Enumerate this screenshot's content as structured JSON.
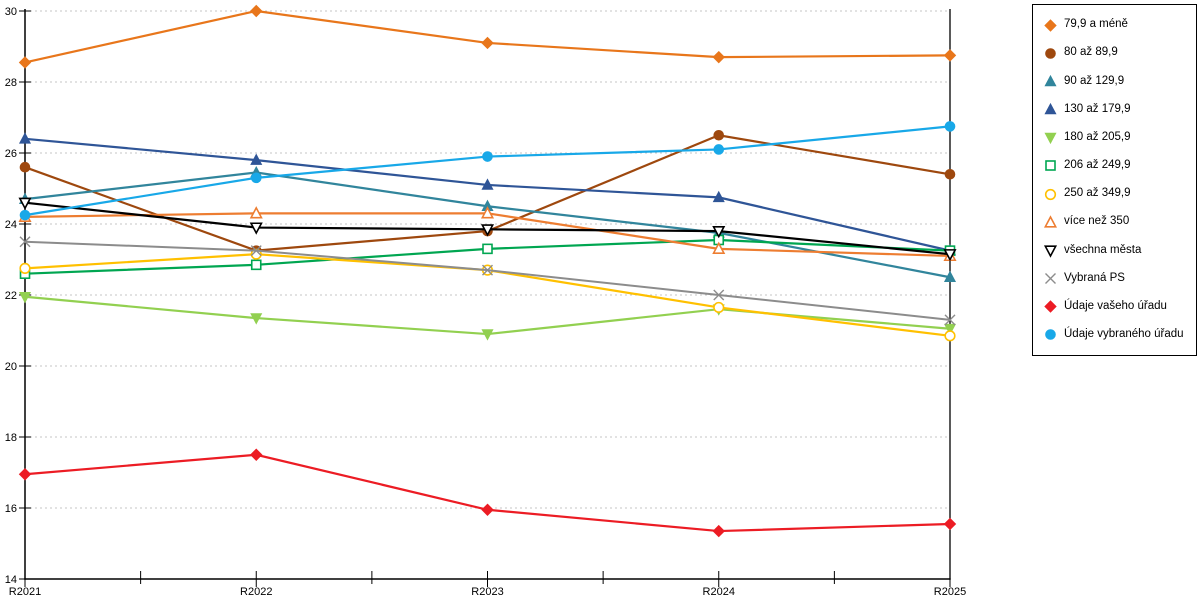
{
  "chart_data": {
    "type": "line",
    "categories": [
      "R2021",
      "R2022",
      "R2023",
      "R2024",
      "R2025"
    ],
    "ylim": [
      14,
      30
    ],
    "ytick_step": 2,
    "grid": "horizontal-dashed",
    "legend_position": "right",
    "colors": {
      "grid": "#c6c6c6",
      "axis": "#000000",
      "background": "#ffffff"
    },
    "series": [
      {
        "name": "79,9 a méně",
        "color": "#e8761b",
        "marker": "diamond",
        "filled": true,
        "values": [
          28.55,
          30.0,
          29.1,
          28.7,
          28.75
        ]
      },
      {
        "name": "80 až 89,9",
        "color": "#9e480e",
        "marker": "circle",
        "filled": true,
        "values": [
          25.6,
          23.25,
          23.8,
          26.5,
          25.4
        ]
      },
      {
        "name": "90 až 129,9",
        "color": "#31859c",
        "marker": "triangle-up",
        "filled": true,
        "values": [
          24.7,
          25.45,
          24.5,
          23.75,
          22.5
        ]
      },
      {
        "name": "130 až 179,9",
        "color": "#2f5597",
        "marker": "triangle-up",
        "filled": true,
        "values": [
          26.4,
          25.8,
          25.1,
          24.75,
          23.25
        ]
      },
      {
        "name": "180 až 205,9",
        "color": "#92d050",
        "marker": "triangle-down",
        "filled": true,
        "values": [
          21.95,
          21.35,
          20.9,
          21.6,
          21.05
        ]
      },
      {
        "name": "206 až 249,9",
        "color": "#00a651",
        "marker": "square",
        "filled": false,
        "values": [
          22.6,
          22.85,
          23.3,
          23.55,
          23.25
        ]
      },
      {
        "name": "250 až 349,9",
        "color": "#ffc000",
        "marker": "circle",
        "filled": false,
        "values": [
          22.75,
          23.15,
          22.7,
          21.65,
          20.85
        ]
      },
      {
        "name": "více než 350",
        "color": "#ed7d31",
        "marker": "triangle-up",
        "filled": false,
        "values": [
          24.2,
          24.3,
          24.3,
          23.3,
          23.1
        ]
      },
      {
        "name": "všechna města",
        "color": "#000000",
        "marker": "triangle-down",
        "filled": false,
        "values": [
          24.6,
          23.9,
          23.85,
          23.8,
          23.15
        ]
      },
      {
        "name": "Vybraná PS",
        "color": "#8c8c8c",
        "marker": "x",
        "filled": false,
        "values": [
          23.5,
          23.25,
          22.7,
          22.0,
          21.3
        ]
      },
      {
        "name": "Údaje vašeho úřadu",
        "color": "#ec1c24",
        "marker": "diamond",
        "filled": true,
        "values": [
          16.95,
          17.5,
          15.95,
          15.35,
          15.55
        ]
      },
      {
        "name": "Údaje vybraného úřadu",
        "color": "#18a8e8",
        "marker": "circle",
        "filled": true,
        "values": [
          24.25,
          25.3,
          25.9,
          26.1,
          26.75
        ]
      }
    ]
  }
}
